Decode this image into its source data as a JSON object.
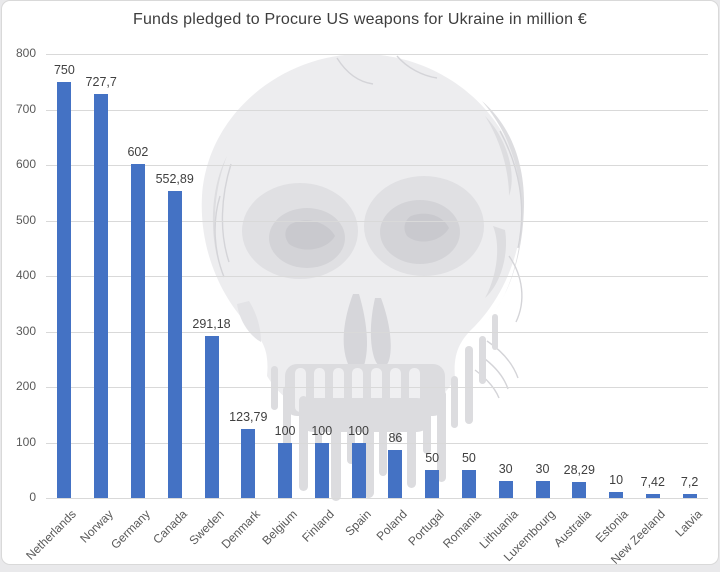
{
  "chart_data": {
    "type": "bar",
    "title": "Funds pledged to Procure US weapons for Ukraine in million €",
    "categories": [
      "Netherlands",
      "Norway",
      "Germany",
      "Canada",
      "Sweden",
      "Denmark",
      "Belgium",
      "Finland",
      "Spain",
      "Poland",
      "Portugal",
      "Romania",
      "Lithuania",
      "Luxembourg",
      "Australia",
      "Estonia",
      "New Zeeland",
      "Latvia"
    ],
    "values": [
      750,
      727.7,
      602,
      552.89,
      291.18,
      123.79,
      100,
      100,
      100,
      86,
      50,
      50,
      30,
      30,
      28.29,
      10,
      7.42,
      7.2
    ],
    "value_labels": [
      "750",
      "727,7",
      "602",
      "552,89",
      "291,18",
      "123,79",
      "100",
      "100",
      "100",
      "86",
      "50",
      "50",
      "30",
      "30",
      "28,29",
      "10",
      "7,42",
      "7,2"
    ],
    "xlabel": "",
    "ylabel": "",
    "ylim": [
      0,
      800
    ],
    "ytick_step": 100,
    "ytick_labels": [
      "0",
      "100",
      "200",
      "300",
      "400",
      "500",
      "600",
      "700",
      "800"
    ],
    "grid": true,
    "legend": false,
    "watermark_description": "grunge skull with dripping paint, light gray, centered behind plot"
  },
  "colors": {
    "bar": "#4472C4",
    "gridline": "#d9d9d9",
    "axis_text": "#595959",
    "value_text": "#404040",
    "title_text": "#3d3d3d",
    "watermark_base": "#ededef",
    "watermark_mid": "#e0e0e3",
    "watermark_dark": "#d3d3d7"
  }
}
